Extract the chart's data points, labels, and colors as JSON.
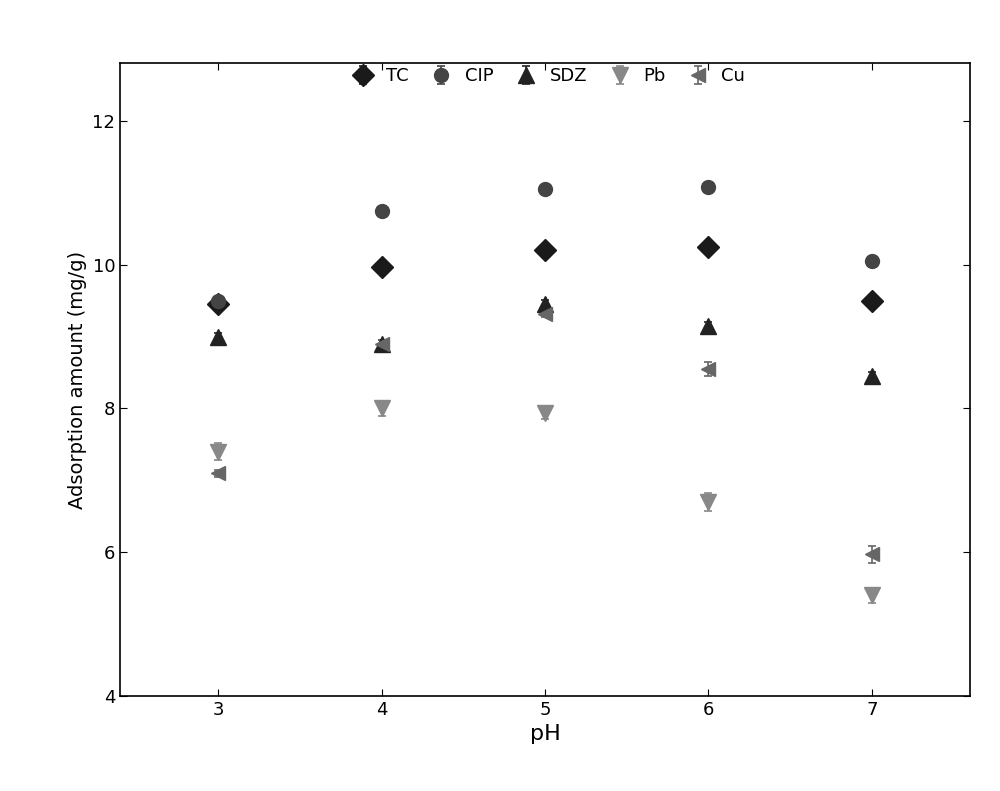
{
  "x": [
    3,
    4,
    5,
    6,
    7
  ],
  "series": {
    "TC": {
      "y": [
        9.45,
        9.97,
        10.2,
        10.25,
        9.5
      ],
      "yerr": [
        0.05,
        0.05,
        0.05,
        0.05,
        0.05
      ],
      "marker": "D",
      "color": "#1a1a1a",
      "markersize": 11,
      "label": "TC"
    },
    "CIP": {
      "y": [
        9.5,
        10.75,
        11.05,
        11.08,
        10.05
      ],
      "yerr": [
        0.05,
        0.06,
        0.05,
        0.05,
        0.07
      ],
      "marker": "o",
      "color": "#444444",
      "markersize": 10,
      "label": "CIP"
    },
    "SDZ": {
      "y": [
        9.0,
        8.9,
        9.45,
        9.15,
        8.45
      ],
      "yerr": [
        0.05,
        0.05,
        0.06,
        0.05,
        0.05
      ],
      "marker": "^",
      "color": "#222222",
      "markersize": 11,
      "label": "SDZ"
    },
    "Pb": {
      "y": [
        7.4,
        8.0,
        7.93,
        6.7,
        5.4
      ],
      "yerr": [
        0.12,
        0.1,
        0.07,
        0.12,
        0.1
      ],
      "marker": "v",
      "color": "#888888",
      "markersize": 11,
      "label": "Pb"
    },
    "Cu": {
      "y": [
        7.1,
        8.9,
        9.32,
        8.55,
        5.97
      ],
      "yerr": [
        0.05,
        0.05,
        0.05,
        0.1,
        0.12
      ],
      "marker": "<",
      "color": "#666666",
      "markersize": 10,
      "label": "Cu"
    }
  },
  "xlabel": "pH",
  "ylabel": "Adsorption amount (mg/g)",
  "ylim": [
    4,
    12.8
  ],
  "yticks": [
    4,
    6,
    8,
    10,
    12
  ],
  "xticks": [
    3,
    4,
    5,
    6,
    7
  ],
  "xlim": [
    2.4,
    7.6
  ],
  "legend_loc": "upper center",
  "legend_ncol": 5,
  "figure_bg": "#ffffff",
  "axes_bg": "#ffffff",
  "xlabel_fontsize": 16,
  "ylabel_fontsize": 14,
  "tick_labelsize": 13
}
